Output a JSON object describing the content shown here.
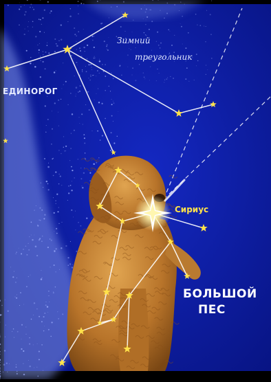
{
  "labels": {
    "winter_triangle_line1": "Зимний",
    "winter_triangle_line2": "треугольник",
    "unicorn": "ЕДИНОРОГ",
    "sirius": "Сириус",
    "big_dog_line1": "БОЛЬШОЙ",
    "big_dog_line2": "ПЕС"
  },
  "colors": {
    "sky": "#0a1aa6",
    "sky_dark": "#040d6e",
    "star": "#ffe24a",
    "constellation_line": "#ffffff",
    "milky_way": "#9fb0ff",
    "dog_fur": "#c0812f"
  },
  "icons": {
    "star": "five-point-star",
    "sirius": "bright-star-glow"
  }
}
